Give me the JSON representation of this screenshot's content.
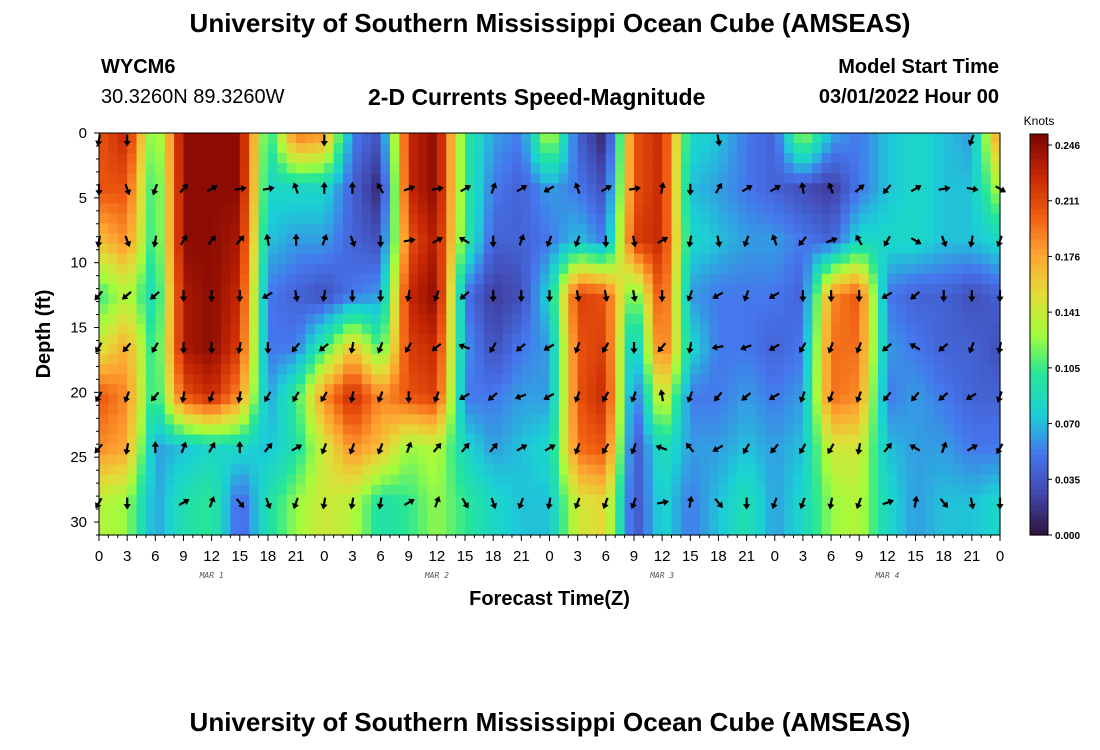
{
  "header": {
    "title": "University of Southern Mississippi Ocean Cube (AMSEAS)",
    "station": "WYCM6",
    "coordinates": "30.3260N  89.3260W",
    "subtitle": "2-D Currents Speed-Magnitude",
    "model_start_label": "Model Start Time",
    "model_start_value": "03/01/2022 Hour 00"
  },
  "footer": {
    "title": "University of Southern Mississippi Ocean Cube (AMSEAS)"
  },
  "chart_data": {
    "type": "heatmap",
    "title": "2-D Currents Speed-Magnitude",
    "xlabel": "Forecast Time(Z)",
    "ylabel": "Depth (ft)",
    "xlim": [
      0,
      96
    ],
    "ylim": [
      31,
      0
    ],
    "x_ticks": [
      0,
      3,
      6,
      9,
      12,
      15,
      18,
      21,
      24,
      27,
      30,
      33,
      36,
      39,
      42,
      45,
      48,
      51,
      54,
      57,
      60,
      63,
      66,
      69,
      72,
      75,
      78,
      81,
      84,
      87,
      90,
      93,
      96
    ],
    "x_tick_labels": [
      "0",
      "3",
      "6",
      "9",
      "12",
      "15",
      "18",
      "21",
      "0",
      "3",
      "6",
      "9",
      "12",
      "15",
      "18",
      "21",
      "0",
      "3",
      "6",
      "9",
      "12",
      "15",
      "18",
      "21",
      "0",
      "3",
      "6",
      "9",
      "12",
      "15",
      "18",
      "21",
      "0"
    ],
    "y_ticks": [
      0,
      5,
      10,
      15,
      20,
      25,
      30
    ],
    "y_tick_labels": [
      "0",
      "5",
      "10",
      "15",
      "20",
      "25",
      "30"
    ],
    "date_labels": [
      {
        "hour": 12,
        "label": "MAR 1"
      },
      {
        "hour": 36,
        "label": "MAR 2"
      },
      {
        "hour": 60,
        "label": "MAR 3"
      },
      {
        "hour": 84,
        "label": "MAR 4"
      }
    ],
    "colorbar": {
      "label": "Knots",
      "min": 0.0,
      "max": 0.246,
      "ticks": [
        "0.000",
        "0.035",
        "0.070",
        "0.105",
        "0.141",
        "0.176",
        "0.211",
        "0.246"
      ]
    },
    "depth_levels": [
      0.5,
      4.3,
      8.3,
      12.5,
      16.5,
      20.3,
      24.3,
      28.5
    ],
    "hours": [
      0,
      3,
      6,
      9,
      12,
      15,
      18,
      21,
      24,
      27,
      30,
      33,
      36,
      39,
      42,
      45,
      48,
      51,
      54,
      57,
      60,
      63,
      66,
      69,
      72,
      75,
      78,
      81,
      84,
      87,
      90,
      93,
      96
    ],
    "speed_knots": [
      [
        0.2,
        0.22,
        0.1,
        0.24,
        0.24,
        0.24,
        0.09,
        0.18,
        0.17,
        0.05,
        0.03,
        0.22,
        0.24,
        0.1,
        0.06,
        0.05,
        0.13,
        0.04,
        0.01,
        0.2,
        0.22,
        0.08,
        0.07,
        0.05,
        0.04,
        0.12,
        0.06,
        0.05,
        0.07,
        0.08,
        0.07,
        0.06,
        0.18
      ],
      [
        0.2,
        0.2,
        0.09,
        0.24,
        0.24,
        0.24,
        0.08,
        0.08,
        0.08,
        0.04,
        0.01,
        0.22,
        0.24,
        0.1,
        0.05,
        0.04,
        0.06,
        0.05,
        0.03,
        0.2,
        0.22,
        0.07,
        0.06,
        0.05,
        0.04,
        0.03,
        0.02,
        0.05,
        0.07,
        0.08,
        0.07,
        0.07,
        0.13
      ],
      [
        0.16,
        0.18,
        0.09,
        0.24,
        0.24,
        0.23,
        0.07,
        0.06,
        0.06,
        0.04,
        0.03,
        0.2,
        0.23,
        0.1,
        0.04,
        0.04,
        0.05,
        0.07,
        0.05,
        0.21,
        0.22,
        0.08,
        0.07,
        0.06,
        0.06,
        0.05,
        0.04,
        0.08,
        0.08,
        0.08,
        0.07,
        0.07,
        0.08
      ],
      [
        0.1,
        0.13,
        0.08,
        0.23,
        0.24,
        0.22,
        0.05,
        0.04,
        0.03,
        0.05,
        0.06,
        0.22,
        0.24,
        0.05,
        0.02,
        0.03,
        0.08,
        0.21,
        0.2,
        0.1,
        0.21,
        0.06,
        0.05,
        0.05,
        0.05,
        0.04,
        0.18,
        0.2,
        0.05,
        0.04,
        0.04,
        0.03,
        0.04
      ],
      [
        0.14,
        0.17,
        0.09,
        0.23,
        0.24,
        0.21,
        0.05,
        0.05,
        0.1,
        0.16,
        0.1,
        0.21,
        0.22,
        0.06,
        0.03,
        0.05,
        0.06,
        0.2,
        0.21,
        0.06,
        0.2,
        0.08,
        0.05,
        0.05,
        0.04,
        0.05,
        0.19,
        0.19,
        0.06,
        0.05,
        0.04,
        0.04,
        0.03
      ],
      [
        0.2,
        0.18,
        0.09,
        0.2,
        0.22,
        0.18,
        0.06,
        0.1,
        0.18,
        0.22,
        0.18,
        0.2,
        0.21,
        0.05,
        0.05,
        0.06,
        0.06,
        0.2,
        0.22,
        0.04,
        0.15,
        0.05,
        0.05,
        0.06,
        0.05,
        0.06,
        0.19,
        0.18,
        0.05,
        0.06,
        0.05,
        0.04,
        0.04
      ],
      [
        0.18,
        0.17,
        0.06,
        0.07,
        0.08,
        0.08,
        0.07,
        0.09,
        0.14,
        0.18,
        0.16,
        0.12,
        0.13,
        0.08,
        0.06,
        0.07,
        0.08,
        0.19,
        0.2,
        0.03,
        0.09,
        0.06,
        0.06,
        0.07,
        0.06,
        0.07,
        0.14,
        0.14,
        0.07,
        0.06,
        0.06,
        0.05,
        0.05
      ],
      [
        0.13,
        0.12,
        0.06,
        0.09,
        0.1,
        0.04,
        0.09,
        0.12,
        0.14,
        0.13,
        0.09,
        0.1,
        0.12,
        0.1,
        0.08,
        0.07,
        0.07,
        0.14,
        0.15,
        0.03,
        0.08,
        0.05,
        0.07,
        0.09,
        0.06,
        0.08,
        0.12,
        0.13,
        0.08,
        0.06,
        0.07,
        0.07,
        0.08
      ]
    ],
    "arrow_direction_deg": [
      [
        190,
        180,
        null,
        null,
        null,
        null,
        null,
        null,
        180,
        null,
        null,
        null,
        null,
        null,
        null,
        null,
        null,
        null,
        null,
        null,
        null,
        null,
        170,
        null,
        null,
        null,
        null,
        null,
        null,
        null,
        null,
        200,
        null
      ],
      [
        180,
        160,
        200,
        40,
        60,
        80,
        80,
        340,
        0,
        0,
        330,
        70,
        80,
        60,
        20,
        60,
        240,
        340,
        60,
        80,
        10,
        180,
        30,
        60,
        60,
        350,
        340,
        50,
        220,
        60,
        80,
        100,
        120
      ],
      [
        190,
        160,
        190,
        30,
        40,
        40,
        350,
        0,
        20,
        160,
        180,
        80,
        60,
        300,
        180,
        20,
        200,
        200,
        180,
        170,
        60,
        190,
        170,
        200,
        340,
        220,
        70,
        330,
        210,
        120,
        160,
        190,
        200
      ],
      [
        220,
        230,
        230,
        180,
        180,
        180,
        240,
        170,
        190,
        180,
        180,
        190,
        200,
        230,
        180,
        180,
        180,
        170,
        170,
        170,
        180,
        200,
        240,
        200,
        240,
        180,
        180,
        180,
        240,
        230,
        180,
        180,
        180
      ],
      [
        210,
        220,
        210,
        180,
        180,
        190,
        180,
        220,
        230,
        190,
        200,
        210,
        230,
        290,
        210,
        230,
        240,
        200,
        210,
        180,
        220,
        190,
        260,
        250,
        240,
        210,
        200,
        200,
        230,
        300,
        230,
        200,
        190
      ],
      [
        210,
        200,
        220,
        190,
        200,
        190,
        210,
        210,
        210,
        190,
        200,
        180,
        200,
        240,
        230,
        250,
        240,
        200,
        210,
        200,
        350,
        200,
        220,
        230,
        240,
        200,
        200,
        200,
        220,
        220,
        230,
        240,
        200
      ],
      [
        220,
        190,
        0,
        20,
        30,
        0,
        40,
        60,
        200,
        200,
        200,
        20,
        40,
        40,
        40,
        60,
        60,
        200,
        210,
        200,
        290,
        320,
        240,
        210,
        220,
        210,
        210,
        190,
        40,
        300,
        20,
        60,
        210
      ],
      [
        210,
        180,
        null,
        60,
        20,
        140,
        160,
        200,
        190,
        190,
        190,
        60,
        20,
        150,
        160,
        200,
        190,
        200,
        200,
        200,
        80,
        10,
        140,
        180,
        200,
        200,
        190,
        200,
        70,
        10,
        140,
        170,
        180
      ]
    ]
  }
}
